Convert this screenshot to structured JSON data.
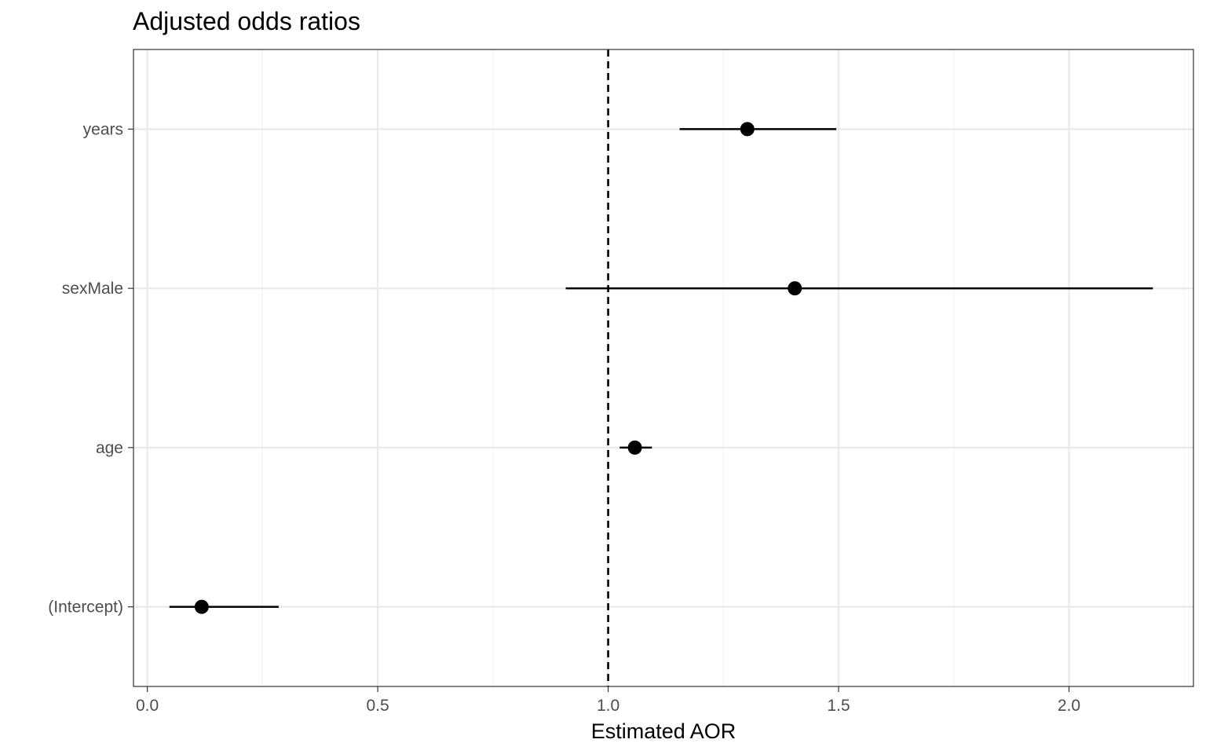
{
  "chart_data": {
    "type": "scatter",
    "title": "Adjusted odds ratios",
    "xlabel": "Estimated AOR",
    "ylabel": "",
    "xlim": [
      -0.03,
      2.27
    ],
    "x_ticks": [
      0.0,
      0.5,
      1.0,
      1.5,
      2.0
    ],
    "x_tick_labels": [
      "0.0",
      "0.5",
      "1.0",
      "1.5",
      "2.0"
    ],
    "x_minor_ticks": [
      0.25,
      0.75,
      1.25,
      1.75,
      2.25
    ],
    "categories": [
      "(Intercept)",
      "age",
      "sexMale",
      "years"
    ],
    "series": [
      {
        "estimate": [
          0.118,
          1.058,
          1.405,
          1.302
        ],
        "lower": [
          0.048,
          1.025,
          0.908,
          1.155
        ],
        "upper": [
          0.285,
          1.095,
          2.182,
          1.495
        ]
      }
    ],
    "reference_line": {
      "x": 1.0,
      "style": "dashed"
    },
    "grid": true,
    "legend": "none",
    "colors": {
      "point": "#000000",
      "interval": "#000000",
      "grid_major": "#ebebeb",
      "grid_minor": "#f4f4f4",
      "panel_border": "#333333",
      "tick_text": "#4d4d4d",
      "reference_line": "#000000"
    }
  }
}
